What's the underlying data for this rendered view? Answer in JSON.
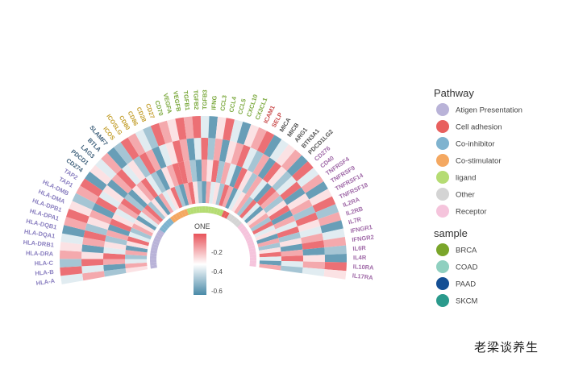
{
  "chart_data": {
    "type": "heatmap",
    "layout": "circular",
    "genes": [
      "HLA-A",
      "HLA-B",
      "HLA-C",
      "HLA-DRA",
      "HLA-DRB1",
      "HLA-DQA1",
      "HLA-DQB1",
      "HLA-DPA1",
      "HLA-DPB1",
      "HLA-DMA",
      "HLA-DMB",
      "TAP1",
      "TAP2",
      "CD274",
      "PDCD1",
      "LAG3",
      "BTLA",
      "SLAMF7",
      "ICOS",
      "ICOSLG",
      "CD80",
      "CD86",
      "CD28",
      "CD27",
      "CD70",
      "VEGFA",
      "VEGFB",
      "TGFB1",
      "TGFB2",
      "TGFB3",
      "IFNG",
      "CCL3",
      "CCL4",
      "CCL5",
      "CXCL10",
      "CX3CL1",
      "ICAM1",
      "SELP",
      "MICA",
      "MICB",
      "ARG1",
      "BTN3A1",
      "PDCD1LG2",
      "CD276",
      "CD40",
      "TNFRSF4",
      "TNFRSF9",
      "TNFRSF14",
      "TNFRSF18",
      "IL2RA",
      "IL2RB",
      "IL7R",
      "IFNGR1",
      "IFNGR2",
      "IL6R",
      "IL4R",
      "IL10RA",
      "IL17RA"
    ],
    "pathway_of_gene": [
      "Atigen Presentation",
      "Atigen Presentation",
      "Atigen Presentation",
      "Atigen Presentation",
      "Atigen Presentation",
      "Atigen Presentation",
      "Atigen Presentation",
      "Atigen Presentation",
      "Atigen Presentation",
      "Atigen Presentation",
      "Atigen Presentation",
      "Atigen Presentation",
      "Atigen Presentation",
      "Co-inhibitor",
      "Co-inhibitor",
      "Co-inhibitor",
      "Co-inhibitor",
      "Co-inhibitor",
      "Co-stimulator",
      "Co-stimulator",
      "Co-stimulator",
      "Co-stimulator",
      "Co-stimulator",
      "Co-stimulator",
      "ligand",
      "ligand",
      "ligand",
      "ligand",
      "ligand",
      "ligand",
      "ligand",
      "ligand",
      "ligand",
      "ligand",
      "ligand",
      "ligand",
      "Cell adhesion",
      "Cell adhesion",
      "Other",
      "Other",
      "Other",
      "Other",
      "Other",
      "Receptor",
      "Receptor",
      "Receptor",
      "Receptor",
      "Receptor",
      "Receptor",
      "Receptor",
      "Receptor",
      "Receptor",
      "Receptor",
      "Receptor",
      "Receptor",
      "Receptor",
      "Receptor",
      "Receptor"
    ],
    "samples": [
      "BRCA",
      "COAD",
      "PAAD",
      "SKCM"
    ],
    "values": [
      [
        -0.3,
        -0.2,
        -0.4,
        -0.5,
        -0.2,
        -0.6,
        -0.3,
        -0.1,
        -0.4,
        -0.5,
        -0.2,
        -0.3,
        -0.6,
        -0.4,
        -0.2,
        -0.1,
        -0.5,
        -0.3,
        -0.6,
        -0.2,
        -0.4,
        -0.3,
        -0.1,
        -0.5,
        -0.6,
        -0.2,
        -0.1,
        -0.3,
        -0.5,
        -0.6,
        -0.2,
        -0.4,
        -0.3,
        -0.5,
        -0.1,
        -0.2,
        -0.6,
        -0.4,
        -0.3,
        -0.2,
        -0.5,
        -0.1,
        -0.4,
        -0.6,
        -0.3,
        -0.2,
        -0.5,
        -0.1,
        -0.4,
        -0.3,
        -0.6,
        -0.2,
        -0.5,
        -0.3,
        -0.1,
        -0.4,
        -0.6,
        -0.2
      ],
      [
        -0.5,
        -0.6,
        -0.2,
        -0.1,
        -0.4,
        -0.3,
        -0.5,
        -0.2,
        -0.6,
        -0.1,
        -0.3,
        -0.4,
        -0.2,
        -0.1,
        -0.5,
        -0.6,
        -0.3,
        -0.2,
        -0.1,
        -0.4,
        -0.5,
        -0.6,
        -0.3,
        -0.2,
        -0.1,
        -0.1,
        -0.2,
        -0.5,
        -0.6,
        -0.2,
        -0.3,
        -0.1,
        -0.5,
        -0.2,
        -0.4,
        -0.6,
        -0.1,
        -0.3,
        -0.5,
        -0.2,
        -0.4,
        -0.6,
        -0.1,
        -0.2,
        -0.5,
        -0.3,
        -0.1,
        -0.6,
        -0.2,
        -0.4,
        -0.1,
        -0.5,
        -0.3,
        -0.6,
        -0.2,
        -0.1,
        -0.4,
        -0.5
      ],
      [
        -0.2,
        -0.4,
        -0.1,
        -0.3,
        -0.6,
        -0.2,
        -0.1,
        -0.5,
        -0.3,
        -0.2,
        -0.6,
        -0.1,
        -0.4,
        -0.3,
        -0.6,
        -0.2,
        -0.1,
        -0.4,
        -0.3,
        -0.5,
        -0.1,
        -0.2,
        -0.6,
        -0.4,
        -0.3,
        -0.1,
        -0.2,
        -0.6,
        -0.4,
        -0.1,
        -0.5,
        -0.2,
        -0.6,
        -0.3,
        -0.2,
        -0.1,
        -0.4,
        -0.5,
        -0.2,
        -0.6,
        -0.1,
        -0.3,
        -0.5,
        -0.4,
        -0.1,
        -0.6,
        -0.3,
        -0.2,
        -0.5,
        -0.1,
        -0.3,
        -0.4,
        -0.2,
        -0.1,
        -0.6,
        -0.3,
        -0.2,
        -0.4
      ],
      [
        -0.4,
        -0.1,
        -0.5,
        -0.2,
        -0.3,
        -0.4,
        -0.6,
        -0.2,
        -0.1,
        -0.3,
        -0.5,
        -0.2,
        -0.1,
        -0.6,
        -0.3,
        -0.4,
        -0.2,
        -0.6,
        -0.5,
        -0.1,
        -0.2,
        -0.4,
        -0.5,
        -0.1,
        -0.2,
        -0.3,
        -0.1,
        -0.2,
        -0.1,
        -0.4,
        -0.6,
        -0.3,
        -0.1,
        -0.4,
        -0.6,
        -0.3,
        -0.2,
        -0.1,
        -0.6,
        -0.4,
        -0.3,
        -0.2,
        -0.6,
        -0.1,
        -0.4,
        -0.2,
        -0.6,
        -0.3,
        -0.1,
        -0.5,
        -0.2,
        -0.6,
        -0.4,
        -0.2,
        -0.5,
        -0.6,
        -0.1,
        -0.3
      ]
    ],
    "colorbar": {
      "title": "ONE",
      "ticks": [
        "-0.2",
        "-0.4",
        "-0.6"
      ],
      "tick_values": [
        -0.2,
        -0.4,
        -0.6
      ],
      "range": [
        -0.65,
        -0.05
      ],
      "low_color": "#4a8aa8",
      "mid_color": "#ffffff",
      "high_color": "#e8535a"
    },
    "legend": {
      "pathway_title": "Pathway",
      "pathways": [
        {
          "label": "Atigen Presentation",
          "color": "#b9b3d8",
          "text_color": "#8a7fc0"
        },
        {
          "label": "Cell adhesion",
          "color": "#e8605e",
          "text_color": "#c94a4a"
        },
        {
          "label": "Co-inhibitor",
          "color": "#7fb3cf",
          "text_color": "#3d5f7a"
        },
        {
          "label": "Co-stimulator",
          "color": "#f4a861",
          "text_color": "#c4a030"
        },
        {
          "label": "ligand",
          "color": "#b5dc73",
          "text_color": "#7aa83c"
        },
        {
          "label": "Other",
          "color": "#d4d4d4",
          "text_color": "#555555"
        },
        {
          "label": "Receptor",
          "color": "#f5c4dc",
          "text_color": "#a06aa8"
        }
      ],
      "sample_title": "sample",
      "samples": [
        {
          "label": "BRCA",
          "color": "#7aa52a"
        },
        {
          "label": "COAD",
          "color": "#8fd0c0"
        },
        {
          "label": "PAAD",
          "color": "#144f94"
        },
        {
          "label": "SKCM",
          "color": "#2a9a8c"
        }
      ]
    }
  },
  "watermark": "老梁谈养生"
}
